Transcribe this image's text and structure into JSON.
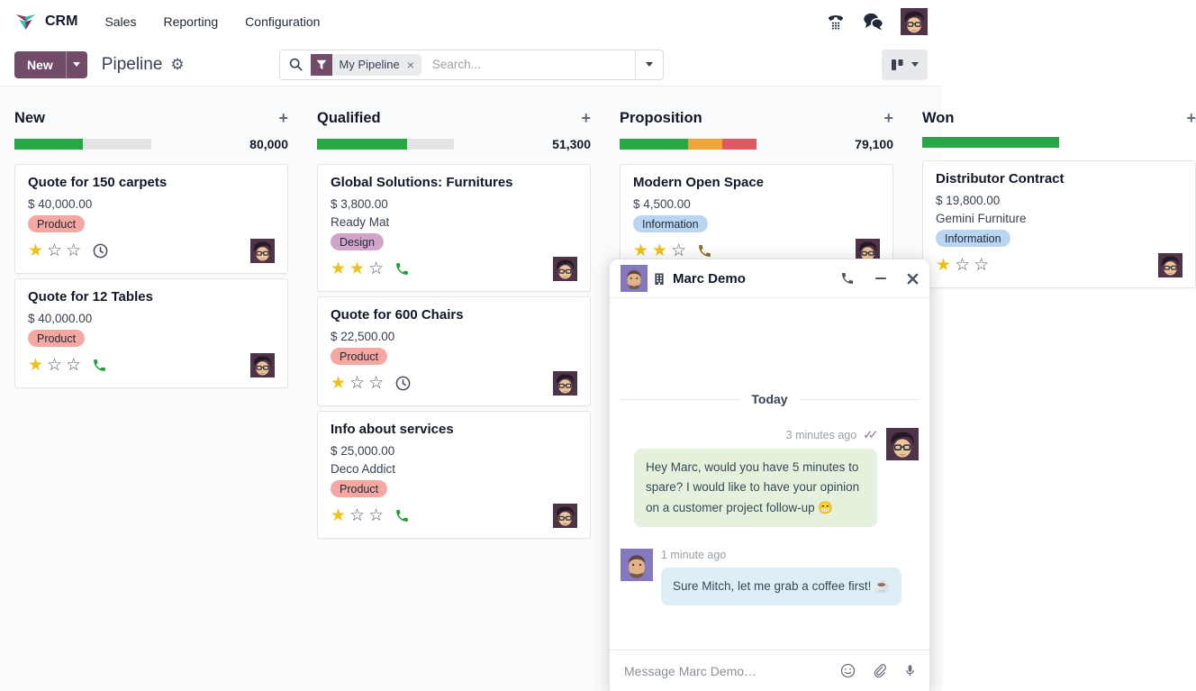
{
  "app": {
    "name": "CRM",
    "menus": [
      "Sales",
      "Reporting",
      "Configuration"
    ]
  },
  "control_panel": {
    "new_button": "New",
    "title": "Pipeline",
    "filter": "My Pipeline",
    "search_placeholder": "Search..."
  },
  "colors": {
    "accent": "#714B67",
    "progress_green": "#28a745",
    "progress_orange": "#eda73c",
    "progress_red": "#dc5a60",
    "progress_gray": "#e4e4e4",
    "star_filled": "#eec116",
    "star_empty": "#4f5d6d",
    "phone_green": "#21a038",
    "phone_gold": "#8f6d1c",
    "bubble_green": "#e3f1dd",
    "bubble_blue": "#ddeff4"
  },
  "kanban": {
    "columns": [
      {
        "name": "New",
        "amount": "80,000",
        "progress": [
          {
            "color": "#28a745",
            "pct": 50
          },
          {
            "color": "#e4e4e4",
            "pct": 50
          }
        ],
        "cards": [
          {
            "title": "Quote for 150 carpets",
            "amount": "$ 40,000.00",
            "partner": null,
            "tags": [
              {
                "label": "Product",
                "bg": "#f5a7a2"
              }
            ],
            "stars_filled": 1,
            "stars_total": 3,
            "activity": {
              "icon": "clock",
              "color": "#4b5563"
            }
          },
          {
            "title": "Quote for 12 Tables",
            "amount": "$ 40,000.00",
            "partner": null,
            "tags": [
              {
                "label": "Product",
                "bg": "#f5a7a2"
              }
            ],
            "stars_filled": 1,
            "stars_total": 3,
            "activity": {
              "icon": "phone",
              "color": "#21a038"
            }
          }
        ]
      },
      {
        "name": "Qualified",
        "amount": "51,300",
        "progress": [
          {
            "color": "#28a745",
            "pct": 66
          },
          {
            "color": "#e4e4e4",
            "pct": 34
          }
        ],
        "cards": [
          {
            "title": "Global Solutions: Furnitures",
            "amount": "$ 3,800.00",
            "partner": "Ready Mat",
            "tags": [
              {
                "label": "Design",
                "bg": "#d3a4ca"
              }
            ],
            "stars_filled": 2,
            "stars_total": 3,
            "activity": {
              "icon": "phone",
              "color": "#21a038"
            }
          },
          {
            "title": "Quote for 600 Chairs",
            "amount": "$ 22,500.00",
            "partner": null,
            "tags": [
              {
                "label": "Product",
                "bg": "#f5a7a2"
              }
            ],
            "stars_filled": 1,
            "stars_total": 3,
            "activity": {
              "icon": "clock",
              "color": "#4b5563"
            }
          },
          {
            "title": "Info about services",
            "amount": "$ 25,000.00",
            "partner": "Deco Addict",
            "tags": [
              {
                "label": "Product",
                "bg": "#f5a7a2"
              }
            ],
            "stars_filled": 1,
            "stars_total": 3,
            "activity": {
              "icon": "phone",
              "color": "#21a038"
            }
          }
        ]
      },
      {
        "name": "Proposition",
        "amount": "79,100",
        "progress": [
          {
            "color": "#28a745",
            "pct": 50
          },
          {
            "color": "#eda73c",
            "pct": 25
          },
          {
            "color": "#dc5a60",
            "pct": 25
          }
        ],
        "cards": [
          {
            "title": "Modern Open Space",
            "amount": "$ 4,500.00",
            "partner": null,
            "tags": [
              {
                "label": "Information",
                "bg": "#b9d5f1"
              }
            ],
            "stars_filled": 2,
            "stars_total": 3,
            "activity": {
              "icon": "phone",
              "color": "#8f6d1c"
            }
          }
        ]
      },
      {
        "name": "Won",
        "amount": "",
        "progress": [
          {
            "color": "#28a745",
            "pct": 100
          }
        ],
        "cards": [
          {
            "title": "Distributor Contract",
            "amount": "$ 19,800.00",
            "partner": "Gemini Furniture",
            "tags": [
              {
                "label": "Information",
                "bg": "#b9d5f1"
              }
            ],
            "stars_filled": 1,
            "stars_total": 3,
            "activity": null
          }
        ]
      }
    ]
  },
  "chat": {
    "title": "Marc Demo",
    "divider": "Today",
    "messages": [
      {
        "side": "right",
        "author": "admin",
        "time": "3 minutes ago",
        "seen": true,
        "bubble": "bubble_green",
        "text": "Hey Marc, would you have 5 minutes to spare? I would like to have your opinion on a customer project follow-up 😁"
      },
      {
        "side": "left",
        "author": "marc",
        "time": "1 minute ago",
        "seen": false,
        "bubble": "bubble_blue",
        "text": "Sure Mitch, let me grab a coffee first! ☕"
      }
    ],
    "composer_placeholder": "Message Marc Demo…"
  }
}
